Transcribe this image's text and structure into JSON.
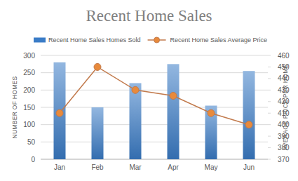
{
  "chart_data": {
    "type": "bar",
    "title": "Recent Home Sales",
    "categories": [
      "Jan",
      "Feb",
      "Mar",
      "Apr",
      "May",
      "Jun"
    ],
    "series": [
      {
        "name": "Recent Home Sales Homes Sold",
        "type": "bar",
        "color": "#3a7cc7",
        "values": [
          280,
          150,
          220,
          275,
          155,
          255
        ]
      },
      {
        "name": "Recent Home Sales Average Price",
        "type": "line",
        "axis": "y2",
        "color": "#c27a4c",
        "marker": "circle",
        "values": [
          410,
          450,
          430,
          425,
          410,
          400
        ]
      }
    ],
    "ylabel": "NUMBER OF HOMES",
    "y2label": "AVERAGE PRICE PER HOME",
    "ylim": [
      0,
      300
    ],
    "yticks": [
      0,
      50,
      100,
      150,
      200,
      250,
      300
    ],
    "y2lim": [
      370,
      460
    ],
    "y2ticks": [
      370,
      380,
      390,
      400,
      410,
      420,
      430,
      440,
      450,
      460
    ],
    "grid": true,
    "legend": "top"
  }
}
